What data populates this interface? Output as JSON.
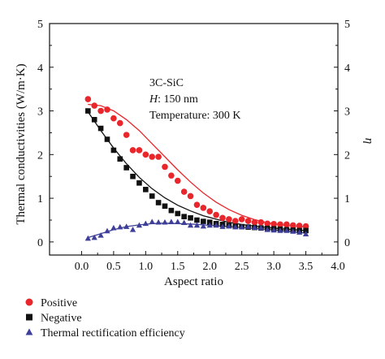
{
  "chart_data": {
    "type": "scatter",
    "annotation": {
      "material": "3C-SiC",
      "h_label": "H",
      "h_value": ": 150 nm",
      "temperature": "Temperature: 300 K"
    },
    "xlabel": "Aspect ratio",
    "ylabel": "Thermal conductivities (W/m·K)",
    "y2label": "η",
    "xlim": [
      -0.5,
      4.0
    ],
    "ylim": [
      -0.3,
      5
    ],
    "y2lim": [
      -0.3,
      5
    ],
    "x_ticks": [
      0.0,
      0.5,
      1.0,
      1.5,
      2.0,
      2.5,
      3.0,
      3.5,
      4.0
    ],
    "x_tick_labels": [
      "0.0",
      "0.5",
      "1.0",
      "1.5",
      "2.0",
      "2.5",
      "3.0",
      "3.5",
      "4.0"
    ],
    "y_ticks": [
      0,
      1,
      2,
      3,
      4,
      5
    ],
    "y_tick_labels": [
      "0",
      "1",
      "2",
      "3",
      "4",
      "5"
    ],
    "legend_placement": "below",
    "series": [
      {
        "name": "Positive",
        "marker": "circle",
        "color": "#e8262b",
        "points": [
          [
            0.1,
            3.27
          ],
          [
            0.2,
            3.12
          ],
          [
            0.3,
            3.0
          ],
          [
            0.4,
            3.03
          ],
          [
            0.5,
            2.83
          ],
          [
            0.6,
            2.72
          ],
          [
            0.7,
            2.45
          ],
          [
            0.8,
            2.1
          ],
          [
            0.9,
            2.1
          ],
          [
            1.0,
            2.0
          ],
          [
            1.1,
            1.95
          ],
          [
            1.2,
            1.95
          ],
          [
            1.3,
            1.72
          ],
          [
            1.4,
            1.52
          ],
          [
            1.5,
            1.4
          ],
          [
            1.6,
            1.15
          ],
          [
            1.7,
            1.05
          ],
          [
            1.8,
            0.85
          ],
          [
            1.9,
            0.78
          ],
          [
            2.0,
            0.7
          ],
          [
            2.1,
            0.62
          ],
          [
            2.2,
            0.55
          ],
          [
            2.3,
            0.52
          ],
          [
            2.4,
            0.48
          ],
          [
            2.5,
            0.52
          ],
          [
            2.6,
            0.48
          ],
          [
            2.7,
            0.45
          ],
          [
            2.8,
            0.45
          ],
          [
            2.9,
            0.42
          ],
          [
            3.0,
            0.41
          ],
          [
            3.1,
            0.4
          ],
          [
            3.2,
            0.4
          ],
          [
            3.3,
            0.38
          ],
          [
            3.4,
            0.37
          ],
          [
            3.5,
            0.36
          ]
        ],
        "fit": [
          [
            0.1,
            3.15
          ],
          [
            0.3,
            3.12
          ],
          [
            0.5,
            3.0
          ],
          [
            0.7,
            2.8
          ],
          [
            0.9,
            2.55
          ],
          [
            1.1,
            2.25
          ],
          [
            1.3,
            1.95
          ],
          [
            1.5,
            1.65
          ],
          [
            1.7,
            1.37
          ],
          [
            1.9,
            1.12
          ],
          [
            2.1,
            0.91
          ],
          [
            2.3,
            0.74
          ],
          [
            2.5,
            0.61
          ],
          [
            2.7,
            0.51
          ],
          [
            2.9,
            0.44
          ],
          [
            3.1,
            0.39
          ],
          [
            3.3,
            0.36
          ],
          [
            3.5,
            0.34
          ]
        ]
      },
      {
        "name": "Negative",
        "marker": "square",
        "color": "#111111",
        "points": [
          [
            0.1,
            3.0
          ],
          [
            0.2,
            2.8
          ],
          [
            0.3,
            2.6
          ],
          [
            0.4,
            2.35
          ],
          [
            0.5,
            2.1
          ],
          [
            0.6,
            1.9
          ],
          [
            0.7,
            1.7
          ],
          [
            0.8,
            1.5
          ],
          [
            0.9,
            1.35
          ],
          [
            1.0,
            1.2
          ],
          [
            1.1,
            1.05
          ],
          [
            1.2,
            0.9
          ],
          [
            1.3,
            0.82
          ],
          [
            1.4,
            0.72
          ],
          [
            1.5,
            0.65
          ],
          [
            1.6,
            0.58
          ],
          [
            1.7,
            0.55
          ],
          [
            1.8,
            0.5
          ],
          [
            1.9,
            0.47
          ],
          [
            2.0,
            0.45
          ],
          [
            2.1,
            0.42
          ],
          [
            2.2,
            0.4
          ],
          [
            2.3,
            0.38
          ],
          [
            2.4,
            0.36
          ],
          [
            2.5,
            0.35
          ],
          [
            2.6,
            0.34
          ],
          [
            2.7,
            0.33
          ],
          [
            2.8,
            0.32
          ],
          [
            2.9,
            0.31
          ],
          [
            3.0,
            0.3
          ],
          [
            3.1,
            0.29
          ],
          [
            3.2,
            0.28
          ],
          [
            3.3,
            0.27
          ],
          [
            3.4,
            0.26
          ],
          [
            3.5,
            0.26
          ]
        ],
        "fit": [
          [
            0.1,
            2.98
          ],
          [
            0.3,
            2.55
          ],
          [
            0.5,
            2.15
          ],
          [
            0.7,
            1.79
          ],
          [
            0.9,
            1.48
          ],
          [
            1.1,
            1.22
          ],
          [
            1.3,
            1.01
          ],
          [
            1.5,
            0.84
          ],
          [
            1.7,
            0.71
          ],
          [
            1.9,
            0.6
          ],
          [
            2.1,
            0.52
          ],
          [
            2.3,
            0.45
          ],
          [
            2.5,
            0.4
          ],
          [
            2.7,
            0.36
          ],
          [
            2.9,
            0.33
          ],
          [
            3.1,
            0.3
          ],
          [
            3.3,
            0.28
          ],
          [
            3.5,
            0.26
          ]
        ]
      },
      {
        "name": "Thermal rectification efficiency",
        "marker": "triangle",
        "color": "#3d3f98",
        "axis": "right",
        "points": [
          [
            0.1,
            0.08
          ],
          [
            0.2,
            0.1
          ],
          [
            0.3,
            0.15
          ],
          [
            0.4,
            0.25
          ],
          [
            0.5,
            0.32
          ],
          [
            0.6,
            0.34
          ],
          [
            0.7,
            0.35
          ],
          [
            0.8,
            0.28
          ],
          [
            0.9,
            0.38
          ],
          [
            1.0,
            0.42
          ],
          [
            1.1,
            0.46
          ],
          [
            1.2,
            0.45
          ],
          [
            1.3,
            0.45
          ],
          [
            1.4,
            0.46
          ],
          [
            1.5,
            0.46
          ],
          [
            1.6,
            0.44
          ],
          [
            1.7,
            0.38
          ],
          [
            1.8,
            0.38
          ],
          [
            1.9,
            0.36
          ],
          [
            2.0,
            0.38
          ],
          [
            2.1,
            0.38
          ],
          [
            2.2,
            0.35
          ],
          [
            2.3,
            0.36
          ],
          [
            2.4,
            0.34
          ],
          [
            2.5,
            0.34
          ],
          [
            2.6,
            0.35
          ],
          [
            2.7,
            0.33
          ],
          [
            2.8,
            0.32
          ],
          [
            2.9,
            0.28
          ],
          [
            3.0,
            0.27
          ],
          [
            3.1,
            0.26
          ],
          [
            3.2,
            0.26
          ],
          [
            3.3,
            0.24
          ],
          [
            3.4,
            0.22
          ],
          [
            3.5,
            0.18
          ]
        ],
        "fit": [
          [
            0.1,
            0.1
          ],
          [
            0.3,
            0.19
          ],
          [
            0.5,
            0.28
          ],
          [
            0.7,
            0.35
          ],
          [
            0.9,
            0.39
          ],
          [
            1.1,
            0.42
          ],
          [
            1.3,
            0.43
          ],
          [
            1.5,
            0.42
          ],
          [
            1.7,
            0.41
          ],
          [
            1.9,
            0.39
          ],
          [
            2.1,
            0.37
          ],
          [
            2.3,
            0.35
          ],
          [
            2.5,
            0.33
          ],
          [
            2.7,
            0.31
          ],
          [
            2.9,
            0.29
          ],
          [
            3.1,
            0.26
          ],
          [
            3.3,
            0.23
          ],
          [
            3.5,
            0.2
          ]
        ]
      }
    ]
  }
}
